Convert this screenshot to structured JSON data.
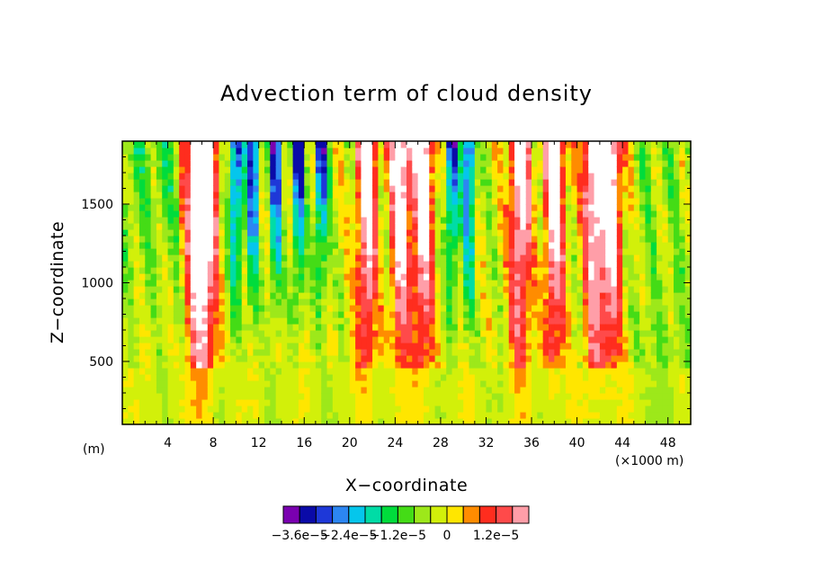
{
  "chart_data": {
    "type": "heatmap",
    "title": "Advection term of cloud density",
    "xlabel": "X−coordinate",
    "ylabel": "Z−coordinate",
    "x_unit_left": "(m)",
    "x_unit_right": "(×1000 m)",
    "xlim": [
      0,
      50
    ],
    "ylim": [
      100,
      1900
    ],
    "x_ticks": [
      4,
      8,
      12,
      16,
      20,
      24,
      28,
      32,
      36,
      40,
      44,
      48
    ],
    "y_ticks": [
      500,
      1000,
      1500
    ],
    "colorbar": {
      "levels": [
        -3.6e-05,
        -3.2e-05,
        -2.8e-05,
        -2.4e-05,
        -2e-05,
        -1.6e-05,
        -1.2e-05,
        -8e-06,
        -4e-06,
        0,
        4e-06,
        8e-06,
        1.2e-05,
        1.6e-05
      ],
      "colors": [
        "#7a00b0",
        "#0a0aa8",
        "#1e38d8",
        "#2c86f2",
        "#05c6ec",
        "#00dca6",
        "#00dc3c",
        "#44dc16",
        "#9de81a",
        "#d2f00a",
        "#ffe600",
        "#ff8c00",
        "#ff2d1e",
        "#ff4a4a",
        "#ff9ea8"
      ],
      "labels": [
        "−3.6e−5",
        "−2.4e−5",
        "−1.2e−5",
        "0",
        "1.2e−5"
      ],
      "label_levels": [
        -3.6e-05,
        -2.4e-05,
        -1.2e-05,
        0,
        1.2e-05
      ]
    },
    "grid": false,
    "strong_negative_columns_x": [
      10,
      11.5,
      13.5,
      15.5,
      17.5,
      29,
      30.5
    ],
    "strong_positive_columns_x": [
      6.5,
      7.5,
      21.5,
      24.5,
      26.5,
      35,
      38,
      41.5,
      43
    ]
  }
}
